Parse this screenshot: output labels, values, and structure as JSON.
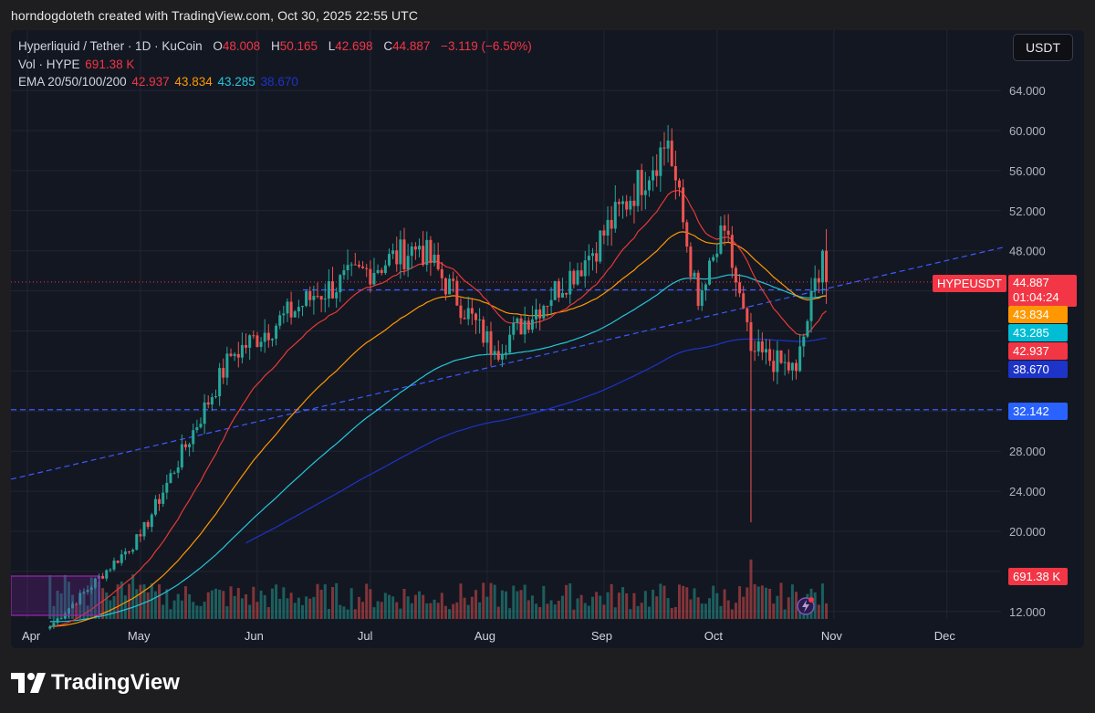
{
  "header": {
    "created_by": "horndogdoteth created with TradingView.com, Oct 30, 2025 22:55 UTC"
  },
  "legend": {
    "symbol": "Hyperliquid / Tether · 1D · KuCoin",
    "o_label": "O",
    "o_value": "48.008",
    "h_label": "H",
    "h_value": "50.165",
    "l_label": "L",
    "l_value": "42.698",
    "c_label": "C",
    "c_value": "44.887",
    "change": "−3.119 (−6.50%)",
    "vol_label": "Vol · HYPE",
    "vol_value": "691.38 K",
    "ema_label": "EMA 20/50/100/200",
    "ema20": "42.937",
    "ema50": "43.834",
    "ema100": "43.285",
    "ema200": "38.670"
  },
  "currency_button": "USDT",
  "price_axis": {
    "ticks": [
      "64.000",
      "60.000",
      "56.000",
      "52.000",
      "48.000",
      "28.000",
      "24.000",
      "20.000",
      "12.000"
    ],
    "tag_symbol": "HYPEUSDT",
    "tag_price": "44.887",
    "tag_countdown": "01:04:24",
    "tag_ema50": "43.834",
    "tag_ema100": "43.285",
    "tag_ema20": "42.937",
    "tag_ema200": "38.670",
    "tag_support": "32.142",
    "tag_volume": "691.38 K"
  },
  "time_axis": {
    "months": [
      "Apr",
      "May",
      "Jun",
      "Jul",
      "Aug",
      "Sep",
      "Oct",
      "Nov",
      "Dec"
    ]
  },
  "branding": {
    "name": "TradingView"
  },
  "colors": {
    "up": "#26a69a",
    "down": "#ef5350",
    "ema20": "#e53935",
    "ema50": "#ff9800",
    "ema100": "#26c6da",
    "ema200": "#1e33c8",
    "trend": "#3d5afe",
    "price_tag": "#f23645"
  },
  "chart_data": {
    "type": "candlestick",
    "symbol": "HYPEUSDT",
    "timeframe": "1D",
    "exchange": "KuCoin",
    "ylim": [
      12,
      66
    ],
    "support_level": 32.142,
    "key_points": [
      {
        "date": "2025-04-07",
        "close": 10.5
      },
      {
        "date": "2025-05-01",
        "close": 19.5
      },
      {
        "date": "2025-05-25",
        "close": 37.5
      },
      {
        "date": "2025-06-16",
        "close": 43.5
      },
      {
        "date": "2025-07-14",
        "close": 48.5
      },
      {
        "date": "2025-08-03",
        "close": 38.0
      },
      {
        "date": "2025-08-28",
        "close": 47.5
      },
      {
        "date": "2025-09-18",
        "close": 59.0
      },
      {
        "date": "2025-09-26",
        "close": 42.5
      },
      {
        "date": "2025-10-03",
        "close": 50.0
      },
      {
        "date": "2025-10-10",
        "close": 38.0,
        "low": 20.9
      },
      {
        "date": "2025-10-22",
        "close": 36.0
      },
      {
        "date": "2025-10-29",
        "close": 48.0
      },
      {
        "date": "2025-10-30",
        "open": 48.008,
        "high": 50.165,
        "low": 42.698,
        "close": 44.887
      }
    ]
  }
}
